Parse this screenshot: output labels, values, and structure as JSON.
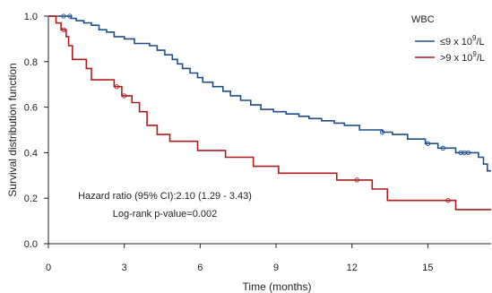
{
  "chart_data": {
    "type": "line",
    "subtype": "kaplan-meier-step",
    "xlabel": "Time (months)",
    "ylabel": "Survival distribution function",
    "xlim": [
      0,
      17.5
    ],
    "ylim": [
      0,
      1.0
    ],
    "x_ticks": [
      0,
      3,
      6,
      9,
      12,
      15
    ],
    "y_ticks": [
      0.0,
      0.2,
      0.4,
      0.6,
      0.8,
      1.0
    ],
    "x_tick_labels": [
      "0",
      "3",
      "6",
      "9",
      "12",
      "15"
    ],
    "y_tick_labels": [
      "0.0",
      "0.2",
      "0.4",
      "0.6",
      "0.8",
      "1.0"
    ],
    "grid": false,
    "legend": {
      "title": "WBC",
      "placement": "top-right",
      "entries": [
        {
          "label": "≤9 x 10",
          "sup": "9",
          "suffix": "/L",
          "color": "#1f4e8c"
        },
        {
          "label": ">9 x 10",
          "sup": "9",
          "suffix": "/L",
          "color": "#b01c1c"
        }
      ]
    },
    "annotations": [
      "Hazard ratio (95% CI):2.10 (1.29 - 3.43)",
      "Log-rank p-value=0.002"
    ],
    "series": [
      {
        "color": "#1f4e8c",
        "steps": [
          [
            0,
            1.0
          ],
          [
            0.9,
            0.99
          ],
          [
            1.1,
            0.98
          ],
          [
            1.4,
            0.97
          ],
          [
            1.7,
            0.96
          ],
          [
            2.0,
            0.94
          ],
          [
            2.3,
            0.93
          ],
          [
            2.6,
            0.91
          ],
          [
            3.0,
            0.9
          ],
          [
            3.4,
            0.88
          ],
          [
            4.0,
            0.87
          ],
          [
            4.3,
            0.85
          ],
          [
            4.6,
            0.83
          ],
          [
            4.9,
            0.81
          ],
          [
            5.1,
            0.79
          ],
          [
            5.3,
            0.77
          ],
          [
            5.6,
            0.75
          ],
          [
            5.9,
            0.73
          ],
          [
            6.1,
            0.71
          ],
          [
            6.5,
            0.69
          ],
          [
            6.9,
            0.67
          ],
          [
            7.2,
            0.65
          ],
          [
            7.6,
            0.63
          ],
          [
            8.0,
            0.61
          ],
          [
            8.4,
            0.59
          ],
          [
            8.9,
            0.58
          ],
          [
            9.4,
            0.57
          ],
          [
            9.9,
            0.56
          ],
          [
            10.3,
            0.55
          ],
          [
            10.8,
            0.54
          ],
          [
            11.3,
            0.53
          ],
          [
            11.7,
            0.52
          ],
          [
            12.3,
            0.5
          ],
          [
            13.2,
            0.49
          ],
          [
            13.6,
            0.48
          ],
          [
            14.2,
            0.46
          ],
          [
            14.9,
            0.44
          ],
          [
            15.4,
            0.42
          ],
          [
            16.1,
            0.4
          ],
          [
            17.0,
            0.38
          ],
          [
            17.2,
            0.35
          ],
          [
            17.35,
            0.32
          ],
          [
            17.5,
            0.32
          ]
        ],
        "censored": [
          [
            0.6,
            1.0
          ],
          [
            0.85,
            1.0
          ],
          [
            13.2,
            0.49
          ],
          [
            15.0,
            0.44
          ],
          [
            15.6,
            0.42
          ],
          [
            16.3,
            0.4
          ],
          [
            16.45,
            0.4
          ],
          [
            16.6,
            0.4
          ]
        ]
      },
      {
        "color": "#b01c1c",
        "steps": [
          [
            0,
            1.0
          ],
          [
            0.3,
            0.97
          ],
          [
            0.5,
            0.94
          ],
          [
            0.7,
            0.91
          ],
          [
            0.8,
            0.87
          ],
          [
            0.95,
            0.81
          ],
          [
            1.5,
            0.77
          ],
          [
            1.7,
            0.72
          ],
          [
            2.6,
            0.69
          ],
          [
            2.9,
            0.65
          ],
          [
            3.3,
            0.62
          ],
          [
            3.6,
            0.58
          ],
          [
            3.9,
            0.52
          ],
          [
            4.3,
            0.48
          ],
          [
            4.8,
            0.45
          ],
          [
            5.9,
            0.41
          ],
          [
            7.0,
            0.38
          ],
          [
            8.1,
            0.34
          ],
          [
            9.1,
            0.31
          ],
          [
            11.4,
            0.28
          ],
          [
            12.8,
            0.24
          ],
          [
            13.4,
            0.19
          ],
          [
            16.1,
            0.15
          ],
          [
            17.5,
            0.15
          ]
        ],
        "censored": [
          [
            0.6,
            0.94
          ],
          [
            2.7,
            0.69
          ],
          [
            3.0,
            0.65
          ],
          [
            12.2,
            0.28
          ],
          [
            15.8,
            0.19
          ]
        ]
      }
    ]
  }
}
